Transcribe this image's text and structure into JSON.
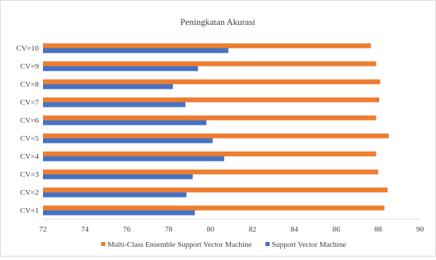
{
  "chart_data": {
    "type": "bar",
    "orientation": "horizontal",
    "title": "Peningkatan  Akurasi",
    "xlabel": "",
    "ylabel": "",
    "categories": [
      "CV=1",
      "CV=2",
      "CV=3",
      "CV=4",
      "CV=5",
      "CV=6",
      "CV=7",
      "CV=8",
      "CV=9",
      "CV=10"
    ],
    "series": [
      {
        "name": "Multi-Class Ensemble Support Vector Machine",
        "color": "#ed7d31",
        "values": [
          88.3,
          88.45,
          88.0,
          87.9,
          88.5,
          87.9,
          88.05,
          88.1,
          87.9,
          87.65
        ]
      },
      {
        "name": "Support Vector Machine",
        "color": "#4472c4",
        "values": [
          79.25,
          78.85,
          79.15,
          80.65,
          80.1,
          79.8,
          78.8,
          78.2,
          79.4,
          80.85
        ]
      }
    ],
    "xlim": [
      72,
      90
    ],
    "xticks": [
      72,
      74,
      76,
      78,
      80,
      82,
      84,
      86,
      88,
      90
    ],
    "grid": false,
    "legend": "bottom"
  }
}
